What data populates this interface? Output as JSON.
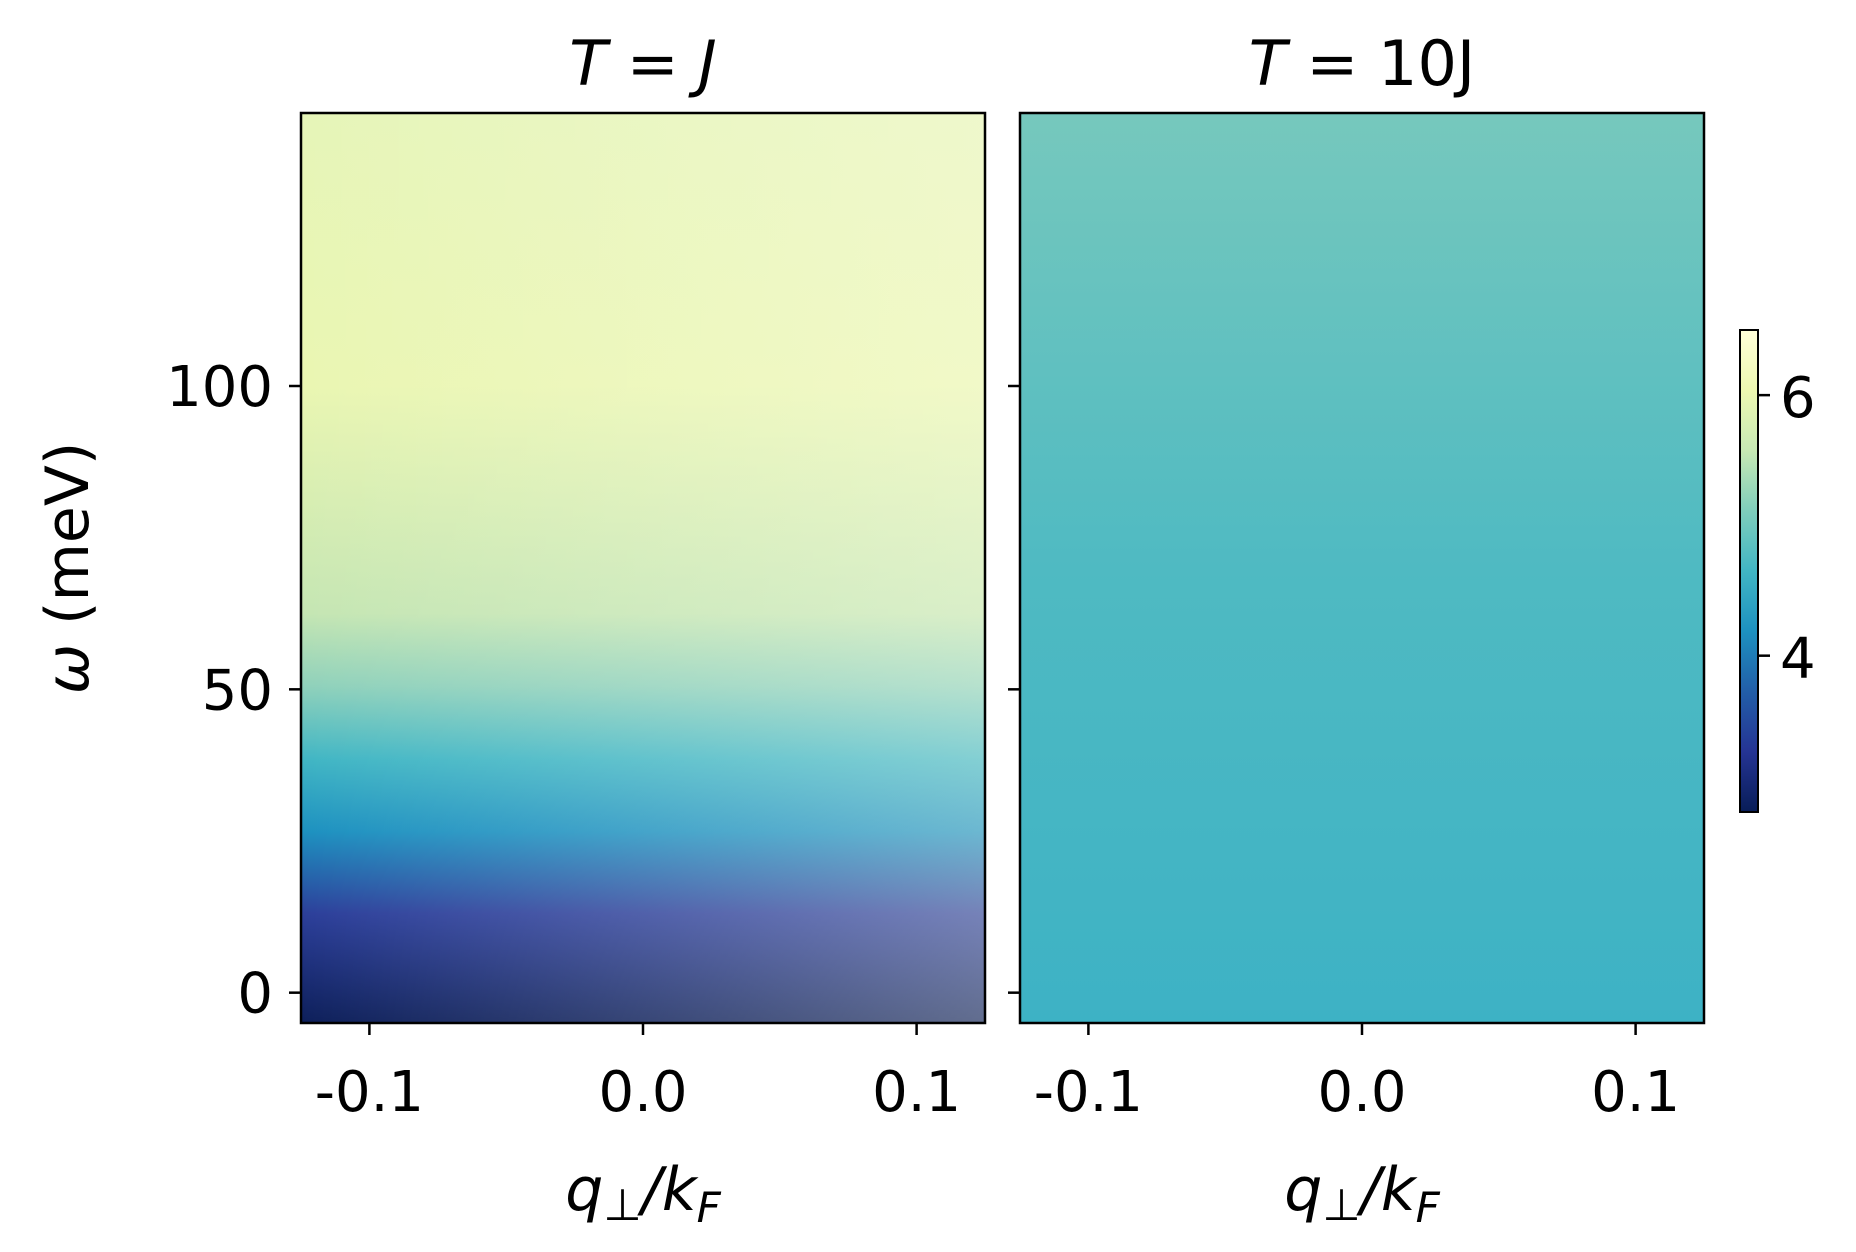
{
  "chart_data": {
    "type": "heatmap",
    "colormap": "YlGnBu_r",
    "shared_y": true,
    "ylabel": "ω (meV)",
    "ylim": [
      -5,
      145
    ],
    "yticks": [
      0,
      50,
      100
    ],
    "ytick_labels": [
      "0",
      "50",
      "100"
    ],
    "xlim": [
      -0.125,
      0.125
    ],
    "xticks": [
      -0.1,
      0.0,
      0.1
    ],
    "xtick_labels": [
      "-0.1",
      "0.0",
      "0.1"
    ],
    "colorbar": {
      "range": [
        2.8,
        6.5
      ],
      "ticks": [
        4,
        6
      ],
      "tick_labels": [
        "4",
        "6"
      ]
    },
    "panels": [
      {
        "title": {
          "main": "T",
          "eq": " = ",
          "rest": "J"
        },
        "title_text": "T = J",
        "xlabel": "q⊥/kF",
        "description_values": {
          "omega": [
            0,
            10,
            20,
            30,
            40,
            50,
            60,
            80,
            100,
            120,
            145
          ],
          "value_at_q_minus": [
            2.9,
            3.1,
            3.3,
            4.0,
            4.6,
            5.3,
            5.8,
            6.0,
            6.0,
            6.1,
            6.2
          ],
          "value_at_q_plus": [
            3.2,
            3.3,
            3.7,
            4.4,
            5.2,
            5.8,
            6.1,
            6.2,
            6.3,
            6.4,
            6.5
          ]
        }
      },
      {
        "title": {
          "main": "T",
          "eq": " = ",
          "rest": "10J"
        },
        "title_text": "T = 10J",
        "xlabel": "q⊥/kF",
        "description_values": {
          "omega": [
            0,
            145
          ],
          "value_at_q_minus": [
            4.9,
            5.3
          ],
          "value_at_q_plus": [
            4.85,
            5.25
          ]
        }
      }
    ]
  }
}
